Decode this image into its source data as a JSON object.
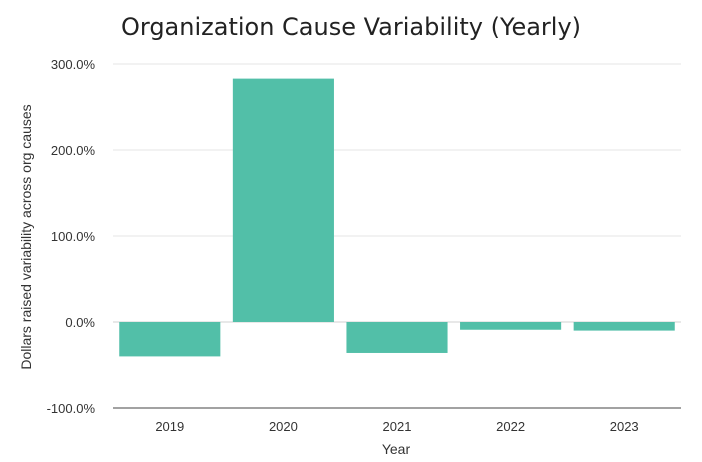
{
  "chart_data": {
    "type": "bar",
    "title": "Organization Cause Variability (Yearly)",
    "xlabel": "Year",
    "ylabel": "Dollars raised variability across org causes",
    "categories": [
      "2019",
      "2020",
      "2021",
      "2022",
      "2023"
    ],
    "series": [
      {
        "values": [
          -40,
          283,
          -36,
          -9,
          -10
        ]
      }
    ],
    "ylim": [
      -100,
      300
    ],
    "yticks": [
      300,
      200,
      100,
      0,
      -100
    ],
    "ytick_labels": [
      "300.0%",
      "200.0%",
      "100.0%",
      "0.0%",
      "-100.0%"
    ],
    "bar_color": "#52bfa8",
    "grid": true,
    "legend": "none"
  }
}
